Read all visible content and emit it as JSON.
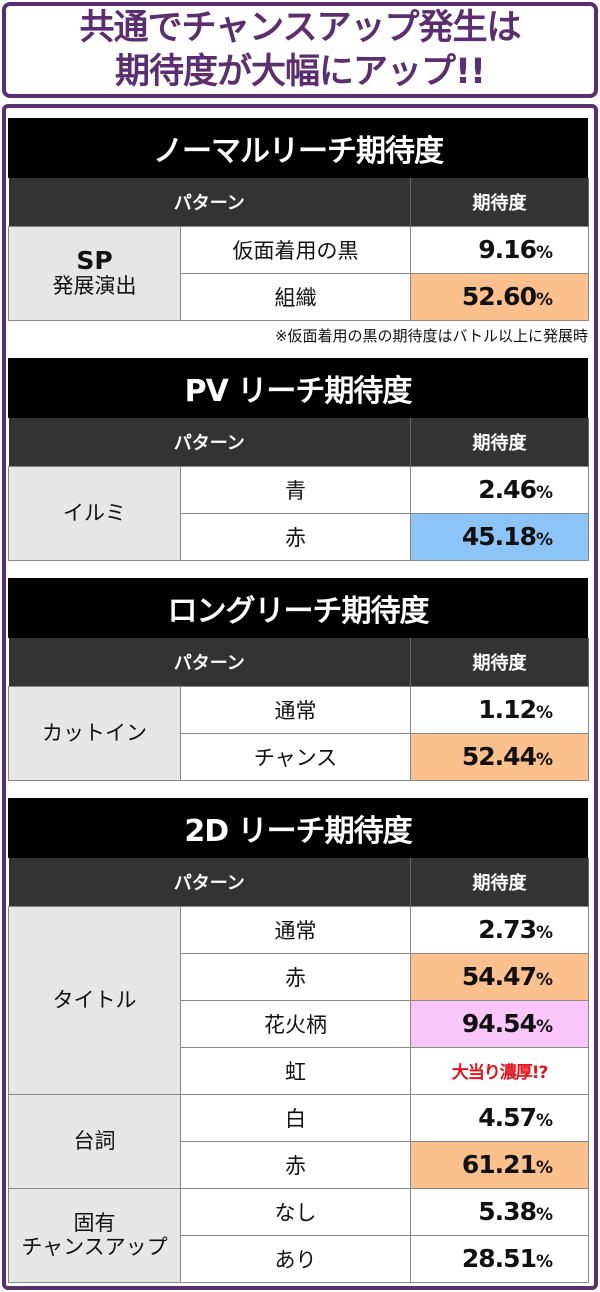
{
  "headline": [
    "共通でチャンスアップ発生は",
    "期待度が大幅にアップ!!"
  ],
  "colors": {
    "purple": "#5b2e6f",
    "orange": "#fcc08c",
    "blue": "#8cc4f8",
    "pink": "#f9c6f9",
    "red": "#e8101a"
  },
  "header": {
    "pattern": "パターン",
    "expectation": "期待度"
  },
  "sections": [
    {
      "title": "ノーマルリーチ期待度",
      "groups": [
        {
          "label": [
            "SP",
            "発展演出"
          ],
          "rows": [
            {
              "pattern": "仮面着用の黒",
              "value": "9.16",
              "unit": "%",
              "highlight": null
            },
            {
              "pattern": "組織",
              "value": "52.60",
              "unit": "%",
              "highlight": "orange"
            }
          ]
        }
      ],
      "note": "※仮面着用の黒の期待度はバトル以上に発展時"
    },
    {
      "title": "PV リーチ期待度",
      "groups": [
        {
          "label": [
            "イルミ"
          ],
          "rows": [
            {
              "pattern": "青",
              "value": "2.46",
              "unit": "%",
              "highlight": null
            },
            {
              "pattern": "赤",
              "value": "45.18",
              "unit": "%",
              "highlight": "blue"
            }
          ]
        }
      ]
    },
    {
      "title": "ロングリーチ期待度",
      "groups": [
        {
          "label": [
            "カットイン"
          ],
          "rows": [
            {
              "pattern": "通常",
              "value": "1.12",
              "unit": "%",
              "highlight": null
            },
            {
              "pattern": "チャンス",
              "value": "52.44",
              "unit": "%",
              "highlight": "orange"
            }
          ]
        }
      ]
    },
    {
      "title": "2D リーチ期待度",
      "groups": [
        {
          "label": [
            "タイトル"
          ],
          "rows": [
            {
              "pattern": "通常",
              "value": "2.73",
              "unit": "%",
              "highlight": null
            },
            {
              "pattern": "赤",
              "value": "54.47",
              "unit": "%",
              "highlight": "orange"
            },
            {
              "pattern": "花火柄",
              "value": "94.54",
              "unit": "%",
              "highlight": "pink"
            },
            {
              "pattern": "虹",
              "value": "大当り濃厚!?",
              "unit": null,
              "highlight": null
            }
          ]
        },
        {
          "label": [
            "台詞"
          ],
          "rows": [
            {
              "pattern": "白",
              "value": "4.57",
              "unit": "%",
              "highlight": null
            },
            {
              "pattern": "赤",
              "value": "61.21",
              "unit": "%",
              "highlight": "orange"
            }
          ]
        },
        {
          "label": [
            "固有",
            "チャンスアップ"
          ],
          "rows": [
            {
              "pattern": "なし",
              "value": "5.38",
              "unit": "%",
              "highlight": null
            },
            {
              "pattern": "あり",
              "value": "28.51",
              "unit": "%",
              "highlight": null
            }
          ]
        }
      ]
    }
  ]
}
